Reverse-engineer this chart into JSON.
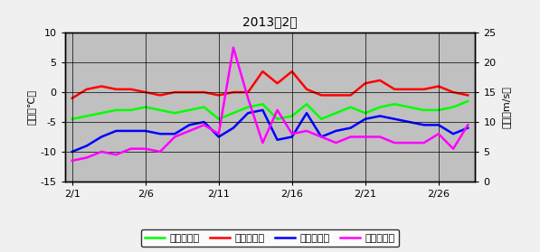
{
  "title": "2013年2月",
  "days": [
    1,
    2,
    3,
    4,
    5,
    6,
    7,
    8,
    9,
    10,
    11,
    12,
    13,
    14,
    15,
    16,
    17,
    18,
    19,
    20,
    21,
    22,
    23,
    24,
    25,
    26,
    27,
    28
  ],
  "avg_temp": [
    -4.5,
    -4.0,
    -3.5,
    -3.0,
    -3.0,
    -2.5,
    -3.0,
    -3.5,
    -3.0,
    -2.5,
    -4.5,
    -3.5,
    -2.5,
    -2.0,
    -4.5,
    -4.0,
    -2.0,
    -4.5,
    -3.5,
    -2.5,
    -3.5,
    -2.5,
    -2.0,
    -2.5,
    -3.0,
    -3.0,
    -2.5,
    -1.5
  ],
  "max_temp": [
    -1.0,
    0.5,
    1.0,
    0.5,
    0.5,
    0.0,
    -0.5,
    0.0,
    0.0,
    0.0,
    -0.5,
    0.0,
    0.0,
    3.5,
    1.5,
    3.5,
    0.5,
    -0.5,
    -0.5,
    -0.5,
    1.5,
    2.0,
    0.5,
    0.5,
    0.5,
    1.0,
    0.0,
    -0.5
  ],
  "min_temp": [
    -10.0,
    -9.0,
    -7.5,
    -6.5,
    -6.5,
    -6.5,
    -7.0,
    -7.0,
    -5.5,
    -5.0,
    -7.5,
    -6.0,
    -3.5,
    -3.0,
    -8.0,
    -7.5,
    -3.5,
    -7.5,
    -6.5,
    -6.0,
    -4.5,
    -4.0,
    -4.5,
    -5.0,
    -5.5,
    -5.5,
    -7.0,
    -6.0
  ],
  "wind_speed": [
    3.5,
    4.0,
    5.0,
    4.5,
    5.5,
    5.5,
    5.0,
    7.5,
    8.5,
    9.5,
    8.0,
    22.5,
    14.0,
    6.5,
    12.0,
    8.0,
    8.5,
    7.5,
    6.5,
    7.5,
    7.5,
    7.5,
    6.5,
    6.5,
    6.5,
    8.0,
    5.5,
    9.5
  ],
  "ylabel_left": "気温（℃）",
  "ylabel_right": "風速（m/s）",
  "ylim_left": [
    -15,
    10
  ],
  "ylim_right": [
    0,
    25
  ],
  "yticks_left": [
    -15,
    -10,
    -5,
    0,
    5,
    10
  ],
  "yticks_right": [
    0,
    5,
    10,
    15,
    20,
    25
  ],
  "xtick_labels": [
    "2/1",
    "2/6",
    "2/11",
    "2/16",
    "2/21",
    "2/26"
  ],
  "xtick_positions": [
    1,
    6,
    11,
    16,
    21,
    26
  ],
  "color_avg": "#00ff00",
  "color_max": "#ff0000",
  "color_min": "#0000ff",
  "color_wind": "#ff00ff",
  "bg_color": "#c0c0c0",
  "fig_bg_color": "#f0f0f0",
  "legend_avg": "日平均気温",
  "legend_max": "日最高気温",
  "legend_min": "日最低気温",
  "legend_wind": "日平均風速"
}
